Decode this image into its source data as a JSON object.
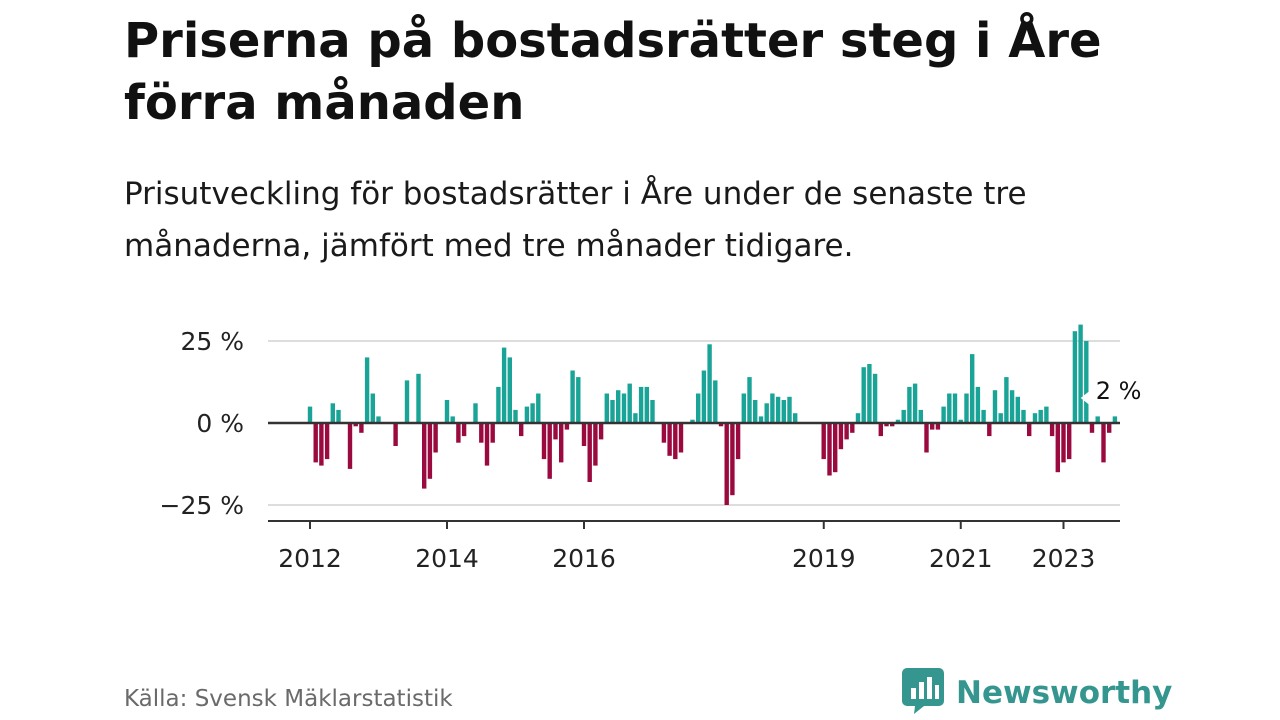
{
  "header": {
    "title": "Priserna på bostadsrätter steg i Åre förra månaden",
    "subtitle": "Prisutveckling för bostadsrätter i Åre under de senaste tre månaderna, jämfört med tre månader tidigare."
  },
  "footer": {
    "source": "Källa: Svensk Mäklarstatistik",
    "brand_label": "Newsworthy",
    "brand_icon": "bar-chart-speech-bubble-icon",
    "brand_color": "#34968f"
  },
  "chart_data": {
    "type": "bar",
    "title": "Priserna på bostadsrätter steg i Åre förra månaden",
    "subtitle": "Prisutveckling för bostadsrätter i Åre under de senaste tre månaderna, jämfört med tre månader tidigare.",
    "xlabel": "",
    "ylabel": "",
    "x_start": "2012-01",
    "x_end": "2023-07",
    "ylim": [
      -30,
      30
    ],
    "y_ticks": [
      {
        "value": 25,
        "label": "25 %"
      },
      {
        "value": 0,
        "label": "0 %"
      },
      {
        "value": -25,
        "label": "−25 %"
      }
    ],
    "x_ticks": [
      {
        "month": "2012-01",
        "label": "2012"
      },
      {
        "month": "2014-01",
        "label": "2014"
      },
      {
        "month": "2016-01",
        "label": "2016"
      },
      {
        "month": "2019-07",
        "label": "2019"
      },
      {
        "month": "2021-07",
        "label": "2021"
      },
      {
        "month": "2023-01",
        "label": "2023"
      }
    ],
    "positive_color": "#1aa498",
    "negative_color": "#9b0a3e",
    "grid": true,
    "annotation": {
      "month": "2023-07",
      "label": "2 %"
    },
    "series": [
      {
        "values": [
          {
            "month": "2012-01",
            "value": 5
          },
          {
            "month": "2012-02",
            "value": -12
          },
          {
            "month": "2012-03",
            "value": -13
          },
          {
            "month": "2012-04",
            "value": -11
          },
          {
            "month": "2012-05",
            "value": 6
          },
          {
            "month": "2012-06",
            "value": 4
          },
          {
            "month": "2012-08",
            "value": -14
          },
          {
            "month": "2012-09",
            "value": -1
          },
          {
            "month": "2012-10",
            "value": -3
          },
          {
            "month": "2012-11",
            "value": 20
          },
          {
            "month": "2012-12",
            "value": 9
          },
          {
            "month": "2013-01",
            "value": 2
          },
          {
            "month": "2013-04",
            "value": -7
          },
          {
            "month": "2013-06",
            "value": 13
          },
          {
            "month": "2013-08",
            "value": 15
          },
          {
            "month": "2013-09",
            "value": -20
          },
          {
            "month": "2013-10",
            "value": -17
          },
          {
            "month": "2013-11",
            "value": -9
          },
          {
            "month": "2014-01",
            "value": 7
          },
          {
            "month": "2014-02",
            "value": 2
          },
          {
            "month": "2014-03",
            "value": -6
          },
          {
            "month": "2014-04",
            "value": -4
          },
          {
            "month": "2014-06",
            "value": 6
          },
          {
            "month": "2014-07",
            "value": -6
          },
          {
            "month": "2014-08",
            "value": -13
          },
          {
            "month": "2014-09",
            "value": -6
          },
          {
            "month": "2014-10",
            "value": 11
          },
          {
            "month": "2014-11",
            "value": 23
          },
          {
            "month": "2014-12",
            "value": 20
          },
          {
            "month": "2015-01",
            "value": 4
          },
          {
            "month": "2015-02",
            "value": -4
          },
          {
            "month": "2015-03",
            "value": 5
          },
          {
            "month": "2015-04",
            "value": 6
          },
          {
            "month": "2015-05",
            "value": 9
          },
          {
            "month": "2015-06",
            "value": -11
          },
          {
            "month": "2015-07",
            "value": -17
          },
          {
            "month": "2015-08",
            "value": -5
          },
          {
            "month": "2015-09",
            "value": -12
          },
          {
            "month": "2015-10",
            "value": -2
          },
          {
            "month": "2015-11",
            "value": 16
          },
          {
            "month": "2015-12",
            "value": 14
          },
          {
            "month": "2016-01",
            "value": -7
          },
          {
            "month": "2016-02",
            "value": -18
          },
          {
            "month": "2016-03",
            "value": -13
          },
          {
            "month": "2016-04",
            "value": -5
          },
          {
            "month": "2016-05",
            "value": 9
          },
          {
            "month": "2016-06",
            "value": 7
          },
          {
            "month": "2016-07",
            "value": 10
          },
          {
            "month": "2016-08",
            "value": 9
          },
          {
            "month": "2016-09",
            "value": 12
          },
          {
            "month": "2016-10",
            "value": 3
          },
          {
            "month": "2016-11",
            "value": 11
          },
          {
            "month": "2016-12",
            "value": 11
          },
          {
            "month": "2017-01",
            "value": 7
          },
          {
            "month": "2017-03",
            "value": -6
          },
          {
            "month": "2017-04",
            "value": -10
          },
          {
            "month": "2017-05",
            "value": -11
          },
          {
            "month": "2017-06",
            "value": -9
          },
          {
            "month": "2017-08",
            "value": 1
          },
          {
            "month": "2017-09",
            "value": 9
          },
          {
            "month": "2017-10",
            "value": 16
          },
          {
            "month": "2017-11",
            "value": 24
          },
          {
            "month": "2017-12",
            "value": 13
          },
          {
            "month": "2018-01",
            "value": -1
          },
          {
            "month": "2018-02",
            "value": -25
          },
          {
            "month": "2018-03",
            "value": -22
          },
          {
            "month": "2018-04",
            "value": -11
          },
          {
            "month": "2018-05",
            "value": 9
          },
          {
            "month": "2018-06",
            "value": 14
          },
          {
            "month": "2018-07",
            "value": 7
          },
          {
            "month": "2018-08",
            "value": 2
          },
          {
            "month": "2018-09",
            "value": 6
          },
          {
            "month": "2018-10",
            "value": 9
          },
          {
            "month": "2018-11",
            "value": 8
          },
          {
            "month": "2018-12",
            "value": 7
          },
          {
            "month": "2019-01",
            "value": 8
          },
          {
            "month": "2019-02",
            "value": 3
          },
          {
            "month": "2019-07",
            "value": -11
          },
          {
            "month": "2019-08",
            "value": -16
          },
          {
            "month": "2019-09",
            "value": -15
          },
          {
            "month": "2019-10",
            "value": -8
          },
          {
            "month": "2019-11",
            "value": -5
          },
          {
            "month": "2019-12",
            "value": -3
          },
          {
            "month": "2020-01",
            "value": 3
          },
          {
            "month": "2020-02",
            "value": 17
          },
          {
            "month": "2020-03",
            "value": 18
          },
          {
            "month": "2020-04",
            "value": 15
          },
          {
            "month": "2020-05",
            "value": -4
          },
          {
            "month": "2020-06",
            "value": -1
          },
          {
            "month": "2020-07",
            "value": -1
          },
          {
            "month": "2020-08",
            "value": 1
          },
          {
            "month": "2020-09",
            "value": 4
          },
          {
            "month": "2020-10",
            "value": 11
          },
          {
            "month": "2020-11",
            "value": 12
          },
          {
            "month": "2020-12",
            "value": 4
          },
          {
            "month": "2021-01",
            "value": -9
          },
          {
            "month": "2021-02",
            "value": -2
          },
          {
            "month": "2021-03",
            "value": -2
          },
          {
            "month": "2021-04",
            "value": 5
          },
          {
            "month": "2021-05",
            "value": 9
          },
          {
            "month": "2021-06",
            "value": 9
          },
          {
            "month": "2021-07",
            "value": 1
          },
          {
            "month": "2021-08",
            "value": 9
          },
          {
            "month": "2021-09",
            "value": 21
          },
          {
            "month": "2021-10",
            "value": 11
          },
          {
            "month": "2021-11",
            "value": 4
          },
          {
            "month": "2021-12",
            "value": -4
          },
          {
            "month": "2022-01",
            "value": 10
          },
          {
            "month": "2022-02",
            "value": 3
          },
          {
            "month": "2022-03",
            "value": 14
          },
          {
            "month": "2022-04",
            "value": 10
          },
          {
            "month": "2022-05",
            "value": 8
          },
          {
            "month": "2022-06",
            "value": 4
          },
          {
            "month": "2022-07",
            "value": -4
          },
          {
            "month": "2022-08",
            "value": 3
          },
          {
            "month": "2022-09",
            "value": 4
          },
          {
            "month": "2022-10",
            "value": 5
          },
          {
            "month": "2022-11",
            "value": -4
          },
          {
            "month": "2022-12",
            "value": -15
          },
          {
            "month": "2023-01",
            "value": -12
          },
          {
            "month": "2023-02",
            "value": -11
          },
          {
            "month": "2023-03",
            "value": 28
          },
          {
            "month": "2023-04",
            "value": 30
          },
          {
            "month": "2023-05",
            "value": 25
          },
          {
            "month": "2023-06",
            "value": -3
          },
          {
            "month": "2023-07",
            "value": 2
          },
          {
            "month": "2023-08",
            "value": -12
          },
          {
            "month": "2023-09",
            "value": -3
          },
          {
            "month": "2023-10",
            "value": 2
          }
        ]
      }
    ]
  }
}
